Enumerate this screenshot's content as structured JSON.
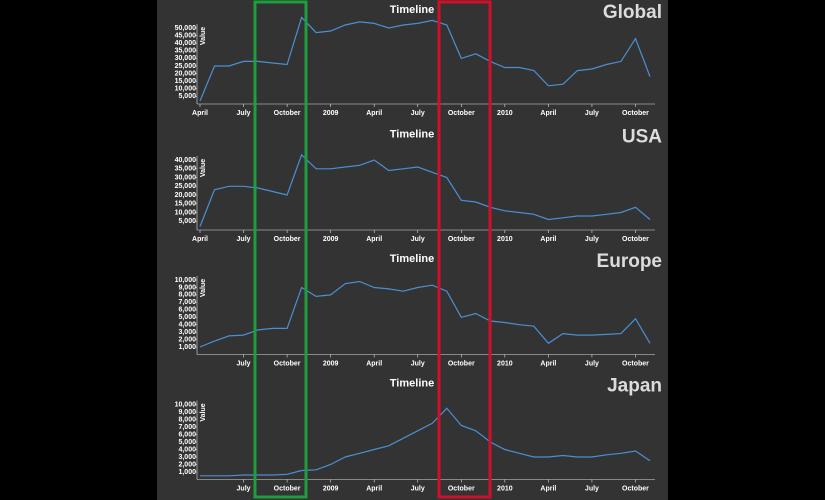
{
  "chart_data": [
    {
      "type": "line",
      "title": "Timeline",
      "label": "Global",
      "y_label": "Value",
      "color": "#4a8fd4",
      "x": [
        "2008-04",
        "2008-05",
        "2008-06",
        "2008-07",
        "2008-08",
        "2008-09",
        "2008-10",
        "2008-11",
        "2008-12",
        "2009-01",
        "2009-02",
        "2009-03",
        "2009-04",
        "2009-05",
        "2009-06",
        "2009-07",
        "2009-08",
        "2009-09",
        "2009-10",
        "2009-11",
        "2009-12",
        "2010-01",
        "2010-02",
        "2010-03",
        "2010-04",
        "2010-05",
        "2010-06",
        "2010-07",
        "2010-08",
        "2010-09",
        "2010-10",
        "2010-11"
      ],
      "values": [
        2000,
        25000,
        25000,
        28000,
        28000,
        27000,
        26000,
        57000,
        47000,
        48000,
        52000,
        54000,
        53000,
        50000,
        52000,
        53000,
        55000,
        52000,
        30000,
        33000,
        28000,
        24000,
        24000,
        22000,
        12000,
        13000,
        22000,
        23000,
        26000,
        28000,
        43000,
        18000
      ],
      "xlim": [
        "2008-04",
        "2010-11"
      ],
      "xticks": [
        {
          "value": "2008-04",
          "label": "April"
        },
        {
          "value": "2008-07",
          "label": "July"
        },
        {
          "value": "2008-10",
          "label": "October"
        },
        {
          "value": "2009-01",
          "label": "2009"
        },
        {
          "value": "2009-04",
          "label": "April"
        },
        {
          "value": "2009-07",
          "label": "July"
        },
        {
          "value": "2009-10",
          "label": "October"
        },
        {
          "value": "2010-01",
          "label": "2010"
        },
        {
          "value": "2010-04",
          "label": "April"
        },
        {
          "value": "2010-07",
          "label": "July"
        },
        {
          "value": "2010-10",
          "label": "October"
        }
      ],
      "ylim": [
        0,
        50000
      ],
      "yticks": [
        {
          "value": 5000,
          "label": "5,000"
        },
        {
          "value": 10000,
          "label": "10,000"
        },
        {
          "value": 15000,
          "label": "15,000"
        },
        {
          "value": 20000,
          "label": "20,000"
        },
        {
          "value": 25000,
          "label": "25,000"
        },
        {
          "value": 30000,
          "label": "30,000"
        },
        {
          "value": 35000,
          "label": "35,000"
        },
        {
          "value": 40000,
          "label": "40,000"
        },
        {
          "value": 45000,
          "label": "45,000"
        },
        {
          "value": 50000,
          "label": "50,000"
        }
      ]
    },
    {
      "type": "line",
      "title": "Timeline",
      "label": "USA",
      "y_label": "Value",
      "color": "#4a8fd4",
      "x": [
        "2008-04",
        "2008-05",
        "2008-06",
        "2008-07",
        "2008-08",
        "2008-09",
        "2008-10",
        "2008-11",
        "2008-12",
        "2009-01",
        "2009-02",
        "2009-03",
        "2009-04",
        "2009-05",
        "2009-06",
        "2009-07",
        "2009-08",
        "2009-09",
        "2009-10",
        "2009-11",
        "2009-12",
        "2010-01",
        "2010-02",
        "2010-03",
        "2010-04",
        "2010-05",
        "2010-06",
        "2010-07",
        "2010-08",
        "2010-09",
        "2010-10",
        "2010-11"
      ],
      "values": [
        2000,
        23000,
        25000,
        25000,
        24000,
        22000,
        20000,
        43000,
        35000,
        35000,
        36000,
        37000,
        40000,
        34000,
        35000,
        36000,
        33000,
        30000,
        17000,
        16000,
        13000,
        11000,
        10000,
        9000,
        6000,
        7000,
        8000,
        8000,
        9000,
        10000,
        13000,
        6000
      ],
      "xlim": [
        "2008-04",
        "2010-11"
      ],
      "xticks": [
        {
          "value": "2008-04",
          "label": "April"
        },
        {
          "value": "2008-07",
          "label": "July"
        },
        {
          "value": "2008-10",
          "label": "October"
        },
        {
          "value": "2009-01",
          "label": "2009"
        },
        {
          "value": "2009-04",
          "label": "April"
        },
        {
          "value": "2009-07",
          "label": "July"
        },
        {
          "value": "2009-10",
          "label": "October"
        },
        {
          "value": "2010-01",
          "label": "2010"
        },
        {
          "value": "2010-04",
          "label": "April"
        },
        {
          "value": "2010-07",
          "label": "July"
        },
        {
          "value": "2010-10",
          "label": "October"
        }
      ],
      "ylim": [
        0,
        40000
      ],
      "yticks": [
        {
          "value": 5000,
          "label": "5,000"
        },
        {
          "value": 10000,
          "label": "10,000"
        },
        {
          "value": 15000,
          "label": "15,000"
        },
        {
          "value": 20000,
          "label": "20,000"
        },
        {
          "value": 25000,
          "label": "25,000"
        },
        {
          "value": 30000,
          "label": "30,000"
        },
        {
          "value": 35000,
          "label": "35,000"
        },
        {
          "value": 40000,
          "label": "40,000"
        }
      ]
    },
    {
      "type": "line",
      "title": "Timeline",
      "label": "Europe",
      "y_label": "Value",
      "color": "#4a8fd4",
      "x": [
        "2008-04",
        "2008-05",
        "2008-06",
        "2008-07",
        "2008-08",
        "2008-09",
        "2008-10",
        "2008-11",
        "2008-12",
        "2009-01",
        "2009-02",
        "2009-03",
        "2009-04",
        "2009-05",
        "2009-06",
        "2009-07",
        "2009-08",
        "2009-09",
        "2009-10",
        "2009-11",
        "2009-12",
        "2010-01",
        "2010-02",
        "2010-03",
        "2010-04",
        "2010-05",
        "2010-06",
        "2010-07",
        "2010-08",
        "2010-09",
        "2010-10",
        "2010-11"
      ],
      "values": [
        1000,
        1800,
        2500,
        2600,
        3300,
        3500,
        3500,
        9000,
        7800,
        8000,
        9500,
        9800,
        9000,
        8800,
        8500,
        9000,
        9300,
        8500,
        5000,
        5500,
        4500,
        4300,
        4000,
        3800,
        1500,
        2800,
        2600,
        2600,
        2700,
        2800,
        4800,
        1500
      ],
      "xlim": [
        "2008-04",
        "2010-11"
      ],
      "xticks": [
        {
          "value": "2008-07",
          "label": "July"
        },
        {
          "value": "2008-10",
          "label": "October"
        },
        {
          "value": "2009-01",
          "label": "2009"
        },
        {
          "value": "2009-04",
          "label": "April"
        },
        {
          "value": "2009-07",
          "label": "July"
        },
        {
          "value": "2009-10",
          "label": "October"
        },
        {
          "value": "2010-01",
          "label": "2010"
        },
        {
          "value": "2010-04",
          "label": "April"
        },
        {
          "value": "2010-07",
          "label": "July"
        },
        {
          "value": "2010-10",
          "label": "October"
        }
      ],
      "ylim": [
        0,
        10000
      ],
      "yticks": [
        {
          "value": 1000,
          "label": "1,000"
        },
        {
          "value": 2000,
          "label": "2,000"
        },
        {
          "value": 3000,
          "label": "3,000"
        },
        {
          "value": 4000,
          "label": "4,000"
        },
        {
          "value": 5000,
          "label": "5,000"
        },
        {
          "value": 6000,
          "label": "6,000"
        },
        {
          "value": 7000,
          "label": "7,000"
        },
        {
          "value": 8000,
          "label": "8,000"
        },
        {
          "value": 9000,
          "label": "9,000"
        },
        {
          "value": 10000,
          "label": "10,000"
        }
      ]
    },
    {
      "type": "line",
      "title": "Timeline",
      "label": "Japan",
      "y_label": "Value",
      "color": "#4a8fd4",
      "x": [
        "2008-04",
        "2008-05",
        "2008-06",
        "2008-07",
        "2008-08",
        "2008-09",
        "2008-10",
        "2008-11",
        "2008-12",
        "2009-01",
        "2009-02",
        "2009-03",
        "2009-04",
        "2009-05",
        "2009-06",
        "2009-07",
        "2009-08",
        "2009-09",
        "2009-10",
        "2009-11",
        "2009-12",
        "2010-01",
        "2010-02",
        "2010-03",
        "2010-04",
        "2010-05",
        "2010-06",
        "2010-07",
        "2010-08",
        "2010-09",
        "2010-10",
        "2010-11"
      ],
      "values": [
        500,
        500,
        500,
        600,
        600,
        600,
        700,
        1200,
        1300,
        2000,
        3000,
        3500,
        4000,
        4500,
        5500,
        6500,
        7500,
        9500,
        7200,
        6500,
        5000,
        4000,
        3500,
        3000,
        3000,
        3200,
        3000,
        3000,
        3300,
        3500,
        3800,
        2500
      ],
      "xlim": [
        "2008-04",
        "2010-11"
      ],
      "xticks": [
        {
          "value": "2008-07",
          "label": "July"
        },
        {
          "value": "2008-10",
          "label": "October"
        },
        {
          "value": "2009-01",
          "label": "2009"
        },
        {
          "value": "2009-04",
          "label": "April"
        },
        {
          "value": "2009-07",
          "label": "July"
        },
        {
          "value": "2009-10",
          "label": "October"
        },
        {
          "value": "2010-01",
          "label": "2010"
        },
        {
          "value": "2010-04",
          "label": "April"
        },
        {
          "value": "2010-07",
          "label": "July"
        },
        {
          "value": "2010-10",
          "label": "October"
        }
      ],
      "ylim": [
        0,
        10000
      ],
      "yticks": [
        {
          "value": 1000,
          "label": "1,000"
        },
        {
          "value": 2000,
          "label": "2,000"
        },
        {
          "value": 3000,
          "label": "3,000"
        },
        {
          "value": 4000,
          "label": "4,000"
        },
        {
          "value": 5000,
          "label": "5,000"
        },
        {
          "value": 6000,
          "label": "6,000"
        },
        {
          "value": 7000,
          "label": "7,000"
        },
        {
          "value": 8000,
          "label": "8,000"
        },
        {
          "value": 9000,
          "label": "9,000"
        },
        {
          "value": 10000,
          "label": "10,000"
        }
      ]
    }
  ]
}
